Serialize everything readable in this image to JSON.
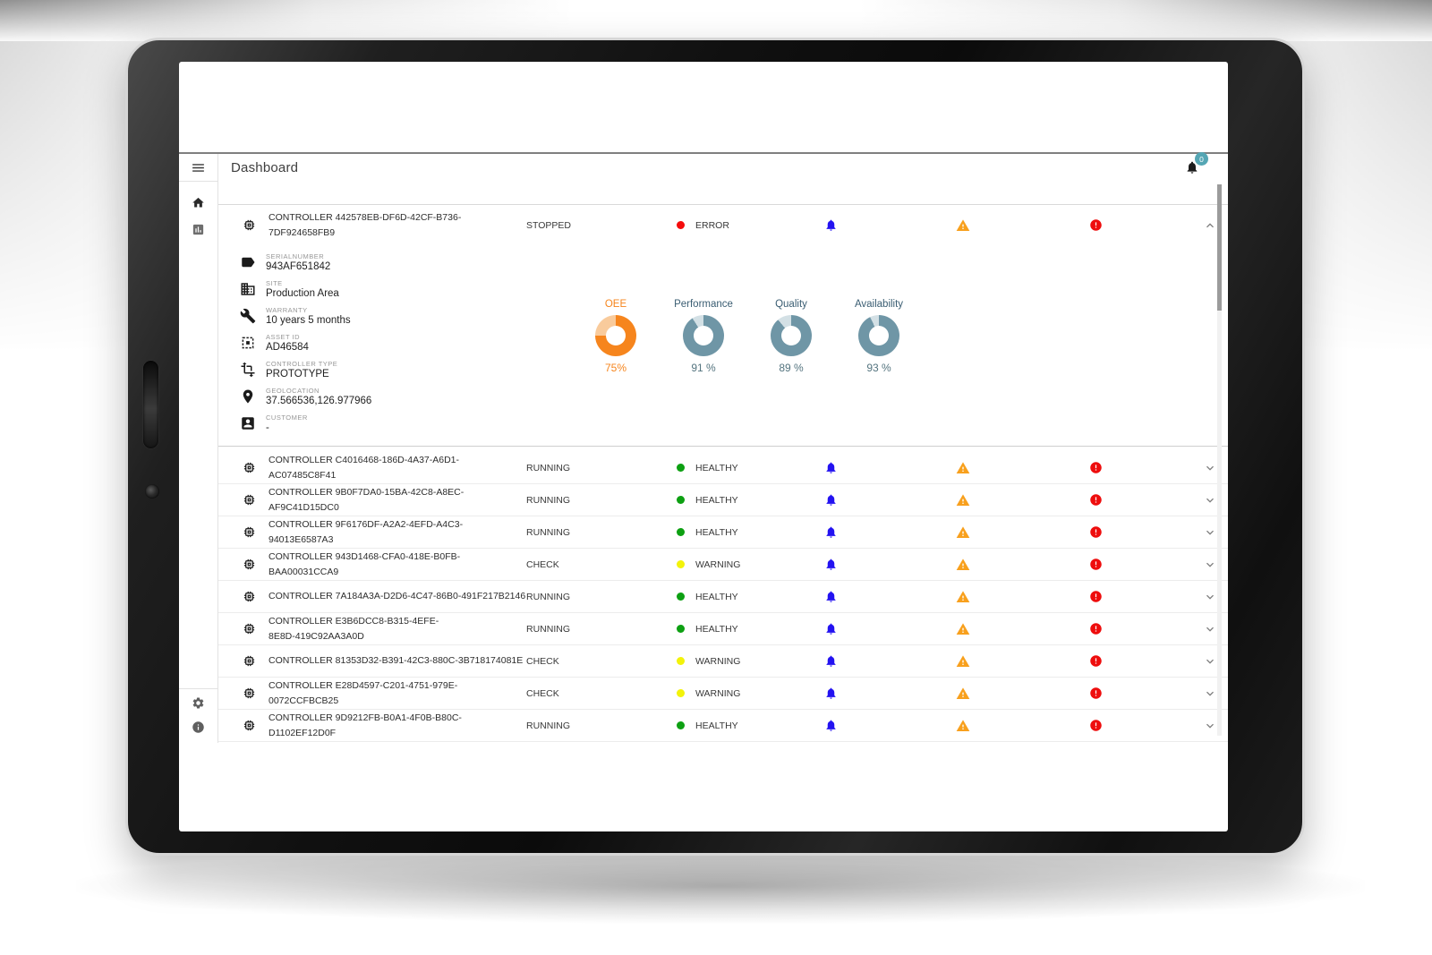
{
  "header": {
    "title": "Dashboard",
    "notification_badge": "0"
  },
  "sidebar": {
    "icons": [
      "menu-icon",
      "home-icon",
      "bar-chart-icon",
      "settings-gear-icon",
      "info-icon"
    ]
  },
  "colors": {
    "bell": "#2312F1",
    "warning": "#F8A01D",
    "error": "#EE0D0D",
    "badge": "#55A6B4",
    "healthy_dot": "#0DA012",
    "warning_dot": "#F3F30A",
    "error_dot": "#F50C0C"
  },
  "expanded": {
    "name": "CONTROLLER 442578EB-DF6D-42CF-B736-7DF924658FB9",
    "status": "STOPPED",
    "health": {
      "label": "ERROR",
      "dot_color": "#F50C0C"
    },
    "details": [
      {
        "icon": "label-icon",
        "label": "SERIALNUMBER",
        "value": "943AF651842"
      },
      {
        "icon": "site-building-icon",
        "label": "SITE",
        "value": "Production Area"
      },
      {
        "icon": "wrench-icon",
        "label": "WARRANTY",
        "value": "10 years 5 months"
      },
      {
        "icon": "asset-chip-icon",
        "label": "ASSET ID",
        "value": "AD46584"
      },
      {
        "icon": "controller-type-icon",
        "label": "CONTROLLER TYPE",
        "value": "PROTOTYPE"
      },
      {
        "icon": "location-pin-icon",
        "label": "GEOLOCATION",
        "value": "37.566536,126.977966"
      },
      {
        "icon": "customer-icon",
        "label": "CUSTOMER",
        "value": "-"
      }
    ],
    "metrics": [
      {
        "label": "OEE",
        "value": "75%",
        "pct": 75,
        "color": "#F6851D",
        "track": "#F9CB9C",
        "label_color": "#F6851D",
        "value_color": "#F6851D"
      },
      {
        "label": "Performance",
        "value": "91 %",
        "pct": 91,
        "color": "#6F96A6",
        "track": "#D3E0E5",
        "label_color": "#3A5D72",
        "value_color": "#54747F"
      },
      {
        "label": "Quality",
        "value": "89 %",
        "pct": 89,
        "color": "#6F96A6",
        "track": "#D3E0E5",
        "label_color": "#3A5D72",
        "value_color": "#54747F"
      },
      {
        "label": "Availability",
        "value": "93 %",
        "pct": 93,
        "color": "#6F96A6",
        "track": "#D3E0E5",
        "label_color": "#3A5D72",
        "value_color": "#54747F"
      }
    ]
  },
  "controllers": [
    {
      "name": "CONTROLLER C4016468-186D-4A37-A6D1-AC07485C8F41",
      "status": "RUNNING",
      "health": "HEALTHY",
      "dot_color": "#0DA012"
    },
    {
      "name": "CONTROLLER 9B0F7DA0-15BA-42C8-A8EC-\nAF9C41D15DC0",
      "status": "RUNNING",
      "health": "HEALTHY",
      "dot_color": "#0DA012"
    },
    {
      "name": "CONTROLLER 9F6176DF-A2A2-4EFD-A4C3-94013E6587A3",
      "status": "RUNNING",
      "health": "HEALTHY",
      "dot_color": "#0DA012"
    },
    {
      "name": "CONTROLLER 943D1468-CFA0-418E-B0FB-BAA00031CCA9",
      "status": "CHECK",
      "health": "WARNING",
      "dot_color": "#F3F30A"
    },
    {
      "name": "CONTROLLER 7A184A3A-D2D6-4C47-86B0-491F217B2146",
      "status": "RUNNING",
      "health": "HEALTHY",
      "dot_color": "#0DA012"
    },
    {
      "name": "CONTROLLER E3B6DCC8-B315-4EFE-\n8E8D-419C92AA3A0D",
      "status": "RUNNING",
      "health": "HEALTHY",
      "dot_color": "#0DA012"
    },
    {
      "name": "CONTROLLER 81353D32-B391-42C3-880C-3B718174081E",
      "status": "CHECK",
      "health": "WARNING",
      "dot_color": "#F3F30A"
    },
    {
      "name": "CONTROLLER E28D4597-C201-4751-979E-0072CCFBCB25",
      "status": "CHECK",
      "health": "WARNING",
      "dot_color": "#F3F30A"
    },
    {
      "name": "CONTROLLER 9D9212FB-B0A1-4F0B-B80C-D1102EF12D0F",
      "status": "RUNNING",
      "health": "HEALTHY",
      "dot_color": "#0DA012"
    }
  ],
  "chart_data": {
    "type": "pie",
    "title": "Controller KPI donuts",
    "series": [
      {
        "name": "OEE",
        "values": [
          75,
          25
        ]
      },
      {
        "name": "Performance",
        "values": [
          91,
          9
        ]
      },
      {
        "name": "Quality",
        "values": [
          89,
          11
        ]
      },
      {
        "name": "Availability",
        "values": [
          93,
          7
        ]
      }
    ]
  }
}
